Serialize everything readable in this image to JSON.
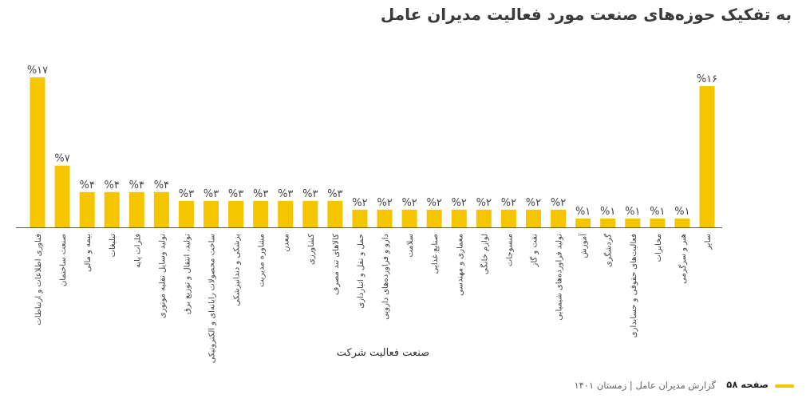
{
  "title": "به تفکیک حوزه‌های صنعت مورد فعالیت مدیران عامل",
  "footer": {
    "page_label": "صفحه ۵۸",
    "report_label": "گزارش مدیران عامل | زمستان ۱۴۰۱"
  },
  "colors": {
    "bar": "#f5c500",
    "axis": "#555555",
    "text": "#444444"
  },
  "chart_data": {
    "type": "bar",
    "xlabel": "صنعت فعالیت شرکت",
    "categories": [
      "فناوری اطلاعات و ارتباطات",
      "صنعت ساختمان",
      "بیمه و مالی",
      "تبلیغات",
      "فلزات پایه",
      "تولید وسایل نقلیه موتوری",
      "تولید، انتقال و توزیع برق",
      "ساخت محصولات رایانه‌ای و الکترونیکی",
      "پزشکی و دندانپزشکی",
      "مشاوره مدیریت",
      "معدن",
      "کشاورزی",
      "کالاهای تند مصرف",
      "حمل و نقل و انبارداری",
      "دارو و فراورده‌های دارویی",
      "سلامت",
      "صنایع غذایی",
      "معماری و مهندسی",
      "لوازم خانگی",
      "منسوجات",
      "نفت و گاز",
      "تولید فراورده‌های شیمیایی",
      "آموزش",
      "گردشگری",
      "فعالیت‌های حقوقی و حسابداری",
      "مخابرات",
      "هنر و سرگرمی",
      "سایر"
    ],
    "values": [
      17,
      7,
      4,
      4,
      4,
      4,
      3,
      3,
      3,
      3,
      3,
      3,
      3,
      2,
      2,
      2,
      2,
      2,
      2,
      2,
      2,
      2,
      1,
      1,
      1,
      1,
      1,
      16
    ],
    "value_labels": [
      "%۱۷",
      "%۷",
      "%۴",
      "%۴",
      "%۴",
      "%۴",
      "%۳",
      "%۳",
      "%۳",
      "%۳",
      "%۳",
      "%۳",
      "%۳",
      "%۲",
      "%۲",
      "%۲",
      "%۲",
      "%۲",
      "%۲",
      "%۲",
      "%۲",
      "%۲",
      "%۱",
      "%۱",
      "%۱",
      "%۱",
      "%۱",
      "%۱۶"
    ],
    "ylim": [
      0,
      17
    ],
    "grid": false,
    "legend": "none"
  }
}
